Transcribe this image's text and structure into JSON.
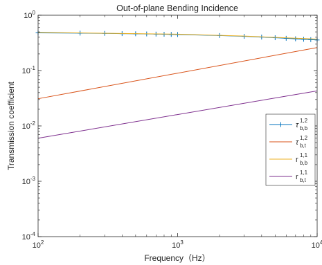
{
  "chart_data": {
    "type": "line",
    "title": "Out-of-plane Bending Incidence",
    "xlabel": "Frequency（Hz）",
    "ylabel": "Transmission coefficient",
    "x_scale": "log",
    "y_scale": "log",
    "xlim": [
      100,
      10000
    ],
    "ylim": [
      0.0001,
      1
    ],
    "x_ticks": [
      {
        "value": 100,
        "base": "10",
        "exp": "2"
      },
      {
        "value": 1000,
        "base": "10",
        "exp": "3"
      },
      {
        "value": 10000,
        "base": "10",
        "exp": "4"
      }
    ],
    "y_ticks": [
      {
        "value": 1,
        "base": "10",
        "exp": "0"
      },
      {
        "value": 0.1,
        "base": "10",
        "exp": "-1"
      },
      {
        "value": 0.01,
        "base": "10",
        "exp": "-2"
      },
      {
        "value": 0.001,
        "base": "10",
        "exp": "-3"
      },
      {
        "value": 0.0001,
        "base": "10",
        "exp": "-4"
      }
    ],
    "grid": false,
    "legend_position": "right",
    "series": [
      {
        "name_main": "τ",
        "name_sup": "1,2",
        "name_sub": "b,b",
        "color": "#0072BD",
        "marker": "plus",
        "x": [
          100,
          200,
          300,
          400,
          500,
          600,
          700,
          800,
          900,
          1000,
          2000,
          3000,
          4000,
          5000,
          6000,
          7000,
          8000,
          9000,
          10000
        ],
        "y": [
          0.48,
          0.475,
          0.47,
          0.465,
          0.462,
          0.459,
          0.456,
          0.453,
          0.45,
          0.448,
          0.43,
          0.415,
          0.403,
          0.392,
          0.383,
          0.375,
          0.368,
          0.362,
          0.357
        ]
      },
      {
        "name_main": "τ",
        "name_sup": "1,2",
        "name_sub": "b,t",
        "color": "#D95319",
        "marker": "none",
        "x": [
          100,
          10000
        ],
        "y": [
          0.031,
          0.26
        ]
      },
      {
        "name_main": "r",
        "name_sup": "1,1",
        "name_sub": "b,b",
        "color": "#EDB120",
        "marker": "none",
        "x": [
          100,
          1000,
          3000,
          10000
        ],
        "y": [
          0.49,
          0.455,
          0.42,
          0.37
        ]
      },
      {
        "name_main": "r",
        "name_sup": "1,1",
        "name_sub": "b,t",
        "color": "#7E2F8E",
        "marker": "none",
        "x": [
          100,
          10000
        ],
        "y": [
          0.006,
          0.043
        ]
      }
    ]
  }
}
